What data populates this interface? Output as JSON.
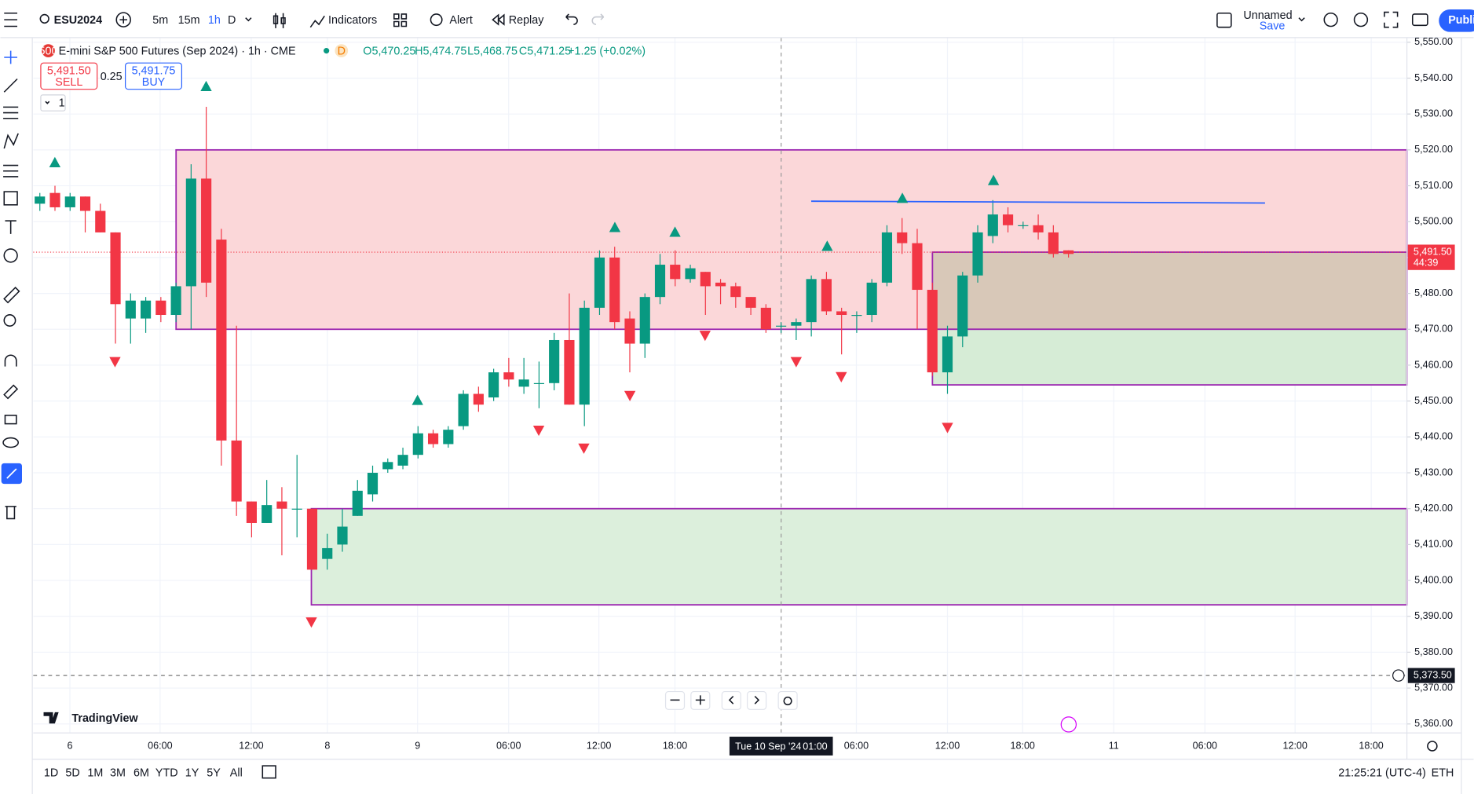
{
  "toolbar": {
    "symbol": "ESU2024",
    "intervals": [
      "5m",
      "15m",
      "1h",
      "D"
    ],
    "indicators": "Indicators",
    "alert": "Alert",
    "replay": "Replay",
    "layout_name": "Unnamed",
    "save": "Save",
    "publish": "Publi"
  },
  "legend": {
    "badge": "500",
    "title": "E-mini S&P 500 Futures (Sep 2024) · 1h · CME",
    "session": "D",
    "values": [
      "O5,470.25",
      "H5,474.75",
      "L5,468.75",
      "C5,471.25",
      "+1.25 (+0.02%)"
    ]
  },
  "trade": {
    "sell_price": "5,491.50",
    "sell": "SELL",
    "spread": "0.25",
    "buy_price": "5,491.75",
    "buy": "BUY",
    "quantity": "1"
  },
  "brand": "TradingView",
  "chart_data": {
    "type": "candlestick",
    "open": [
      5505,
      5508,
      5504,
      5507,
      5503,
      5497,
      5473,
      5473,
      5478,
      5474,
      5482,
      5512,
      5495,
      5439,
      5422,
      5416,
      5422,
      5420,
      5420,
      5406,
      5410,
      5418,
      5424,
      5431,
      5432,
      5435,
      5441,
      5438,
      5443,
      5452,
      5451,
      5458,
      5454,
      5455,
      5455,
      5467,
      5449,
      5476,
      5490,
      5473,
      5466,
      5479,
      5488,
      5484,
      5486,
      5483,
      5482,
      5479,
      5476,
      5471,
      5471,
      5472,
      5484,
      5475,
      5474,
      5474,
      5483,
      5497,
      5494,
      5481,
      5458,
      5468,
      5485,
      5496,
      5502,
      5499,
      5499,
      5497,
      5492
    ],
    "high": [
      5508,
      5510,
      5508,
      5507,
      5505,
      5497,
      5480,
      5479,
      5479,
      5483,
      5516,
      5532,
      5498,
      5471,
      5422,
      5428,
      5426,
      5435,
      5420,
      5413,
      5420,
      5428,
      5432,
      5434,
      5437,
      5443,
      5442,
      5443,
      5453,
      5454,
      5459,
      5462,
      5462,
      5461,
      5469,
      5480,
      5478,
      5492,
      5493,
      5475,
      5480,
      5491,
      5492,
      5488,
      5486,
      5484,
      5483,
      5479,
      5477,
      5472,
      5473,
      5485,
      5486,
      5476,
      5475,
      5484,
      5499,
      5501,
      5498,
      5483,
      5471,
      5486,
      5499,
      5506,
      5504,
      5500,
      5502,
      5499,
      5492
    ],
    "low": [
      5503,
      5503,
      5503,
      5497,
      5497,
      5466,
      5466,
      5469,
      5472,
      5472,
      5470,
      5479,
      5432,
      5418,
      5412,
      5416,
      5407,
      5412,
      5403,
      5403,
      5408,
      5418,
      5422,
      5430,
      5431,
      5434,
      5437,
      5437,
      5442,
      5447,
      5450,
      5454,
      5452,
      5448,
      5453,
      5449,
      5443,
      5474,
      5470,
      5458,
      5462,
      5477,
      5482,
      5483,
      5474,
      5477,
      5476,
      5474,
      5469,
      5469,
      5467,
      5468,
      5474,
      5463,
      5469,
      5472,
      5482,
      5491,
      5470,
      5457,
      5452,
      5465,
      5483,
      5494,
      5497,
      5498,
      5495,
      5490,
      5490
    ],
    "close": [
      5507,
      5504,
      5507,
      5503,
      5497,
      5477,
      5478,
      5478,
      5474,
      5482,
      5512,
      5483,
      5439,
      5422,
      5416,
      5421,
      5420,
      5420,
      5403,
      5409,
      5415,
      5425,
      5430,
      5433,
      5435,
      5441,
      5438,
      5442,
      5452,
      5449,
      5458,
      5456,
      5456,
      5455,
      5467,
      5449,
      5476,
      5490,
      5472,
      5466,
      5479,
      5488,
      5484,
      5487,
      5482,
      5482,
      5479,
      5476,
      5470,
      5471,
      5472,
      5484,
      5475,
      5474,
      5474,
      5483,
      5497,
      5494,
      5481,
      5458,
      5468,
      5485,
      5497,
      5502,
      5499,
      5499,
      5497,
      5491,
      5491
    ],
    "up_color": "#089981",
    "down_color": "#f23645",
    "ylim": [
      5357.5,
      5551.3
    ],
    "yticks": [
      {
        "value": 5550,
        "label": "5,550.00"
      },
      {
        "value": 5540,
        "label": "5,540.00"
      },
      {
        "value": 5530,
        "label": "5,530.00"
      },
      {
        "value": 5520,
        "label": "5,520.00"
      },
      {
        "value": 5510,
        "label": "5,510.00"
      },
      {
        "value": 5500,
        "label": "5,500.00"
      },
      {
        "value": 5490,
        "label": "5,490.00"
      },
      {
        "value": 5480,
        "label": "5,480.00"
      },
      {
        "value": 5470,
        "label": "5,470.00"
      },
      {
        "value": 5460,
        "label": "5,460.00"
      },
      {
        "value": 5450,
        "label": "5,450.00"
      },
      {
        "value": 5440,
        "label": "5,440.00"
      },
      {
        "value": 5430,
        "label": "5,430.00"
      },
      {
        "value": 5420,
        "label": "5,420.00"
      },
      {
        "value": 5410,
        "label": "5,410.00"
      },
      {
        "value": 5400,
        "label": "5,400.00"
      },
      {
        "value": 5390,
        "label": "5,390.00"
      },
      {
        "value": 5380,
        "label": "5,380.00"
      },
      {
        "value": 5370,
        "label": "5,370.00"
      },
      {
        "value": 5360,
        "label": "5,360.00"
      }
    ],
    "x_labels": [
      "6",
      "06:00",
      "12:00",
      "8",
      "9",
      "06:00",
      "12:00",
      "18:00",
      "06:00",
      "12:00",
      "18:00",
      "11",
      "06:00",
      "12:00",
      "18:00"
    ],
    "grid": true,
    "zones": [
      {
        "top": 5520,
        "bottom": 5470,
        "color": "#fbd7d9"
      },
      {
        "top": 5420,
        "bottom": 5393.2,
        "color": "#dcefdc"
      }
    ],
    "position": {
      "top": 5491.5,
      "mid": 5470,
      "bottom": 5454.5
    },
    "trend_line": {
      "start": 5505.7,
      "end": 5505.2,
      "color": "#2962ff"
    },
    "last_price": {
      "value": 5491.5,
      "label": "5,491.50",
      "countdown": "44:39"
    },
    "crosshair": {
      "value": 5373.5,
      "label": "5,373.50",
      "date": "Tue 10 Sep '24",
      "time": "01:00"
    }
  },
  "bottom": {
    "ranges": [
      "1D",
      "5D",
      "1M",
      "3M",
      "6M",
      "YTD",
      "1Y",
      "5Y",
      "All"
    ],
    "clock": "21:25:21 (UTC-4)",
    "session": "ETH"
  }
}
